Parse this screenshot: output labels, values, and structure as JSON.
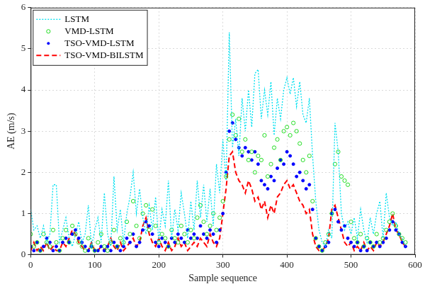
{
  "chart_data": {
    "type": "line",
    "x_label": "Sample sequence",
    "y_label": "AE (m/s)",
    "xlim": [
      0,
      600
    ],
    "xticks": [
      0,
      100,
      200,
      300,
      400,
      500,
      600
    ],
    "ylim": [
      0,
      6
    ],
    "yticks": [
      0,
      1,
      2,
      3,
      4,
      5,
      6
    ],
    "grid": true,
    "legend": "upper left",
    "x": [
      0,
      5,
      10,
      15,
      20,
      25,
      30,
      35,
      40,
      45,
      50,
      55,
      60,
      65,
      70,
      75,
      80,
      85,
      90,
      95,
      100,
      105,
      110,
      115,
      120,
      125,
      130,
      135,
      140,
      145,
      150,
      155,
      160,
      165,
      170,
      175,
      180,
      185,
      190,
      195,
      200,
      205,
      210,
      215,
      220,
      225,
      230,
      235,
      240,
      245,
      250,
      255,
      260,
      265,
      270,
      275,
      280,
      285,
      290,
      295,
      300,
      305,
      310,
      315,
      320,
      325,
      330,
      335,
      340,
      345,
      350,
      355,
      360,
      365,
      370,
      375,
      380,
      385,
      390,
      395,
      400,
      405,
      410,
      415,
      420,
      425,
      430,
      435,
      440,
      445,
      450,
      455,
      460,
      465,
      470,
      475,
      480,
      485,
      490,
      495,
      500,
      505,
      510,
      515,
      520,
      525,
      530,
      535,
      540,
      545,
      550,
      555,
      560,
      565,
      570,
      575,
      580,
      585
    ],
    "series": [
      {
        "name": "LSTM",
        "color": "#00e0f0",
        "line_style": "dotted",
        "marker": "none",
        "values": [
          1.1,
          0.6,
          0.7,
          0.4,
          0.7,
          0.3,
          0.5,
          1.7,
          1.7,
          0.3,
          0.6,
          0.9,
          0.4,
          0.2,
          0.5,
          0.8,
          0.3,
          0.5,
          1.2,
          0.2,
          0.6,
          0.9,
          0.3,
          1.5,
          0.5,
          0.2,
          1.9,
          0.6,
          1.1,
          0.3,
          1.0,
          1.4,
          2.0,
          1.0,
          1.6,
          0.9,
          0.5,
          1.2,
          0.6,
          1.4,
          0.3,
          1.1,
          0.7,
          1.8,
          0.4,
          1.1,
          0.6,
          1.5,
          1.0,
          0.4,
          1.3,
          0.6,
          1.8,
          0.9,
          1.7,
          0.8,
          1.6,
          0.7,
          2.2,
          1.5,
          2.8,
          1.8,
          5.4,
          2.6,
          3.3,
          2.4,
          3.8,
          3.0,
          4.0,
          3.1,
          4.4,
          4.5,
          3.3,
          4.0,
          3.4,
          4.2,
          2.9,
          3.8,
          3.3,
          4.0,
          4.3,
          3.9,
          4.3,
          3.6,
          4.2,
          3.4,
          3.2,
          3.8,
          2.4,
          1.3,
          0.6,
          0.3,
          0.2,
          0.6,
          0.4,
          3.2,
          2.5,
          1.0,
          0.6,
          0.8,
          0.5,
          0.9,
          0.4,
          1.1,
          0.6,
          0.3,
          0.9,
          0.5,
          1.0,
          1.3,
          0.4,
          1.5,
          0.9,
          0.7,
          0.8,
          0.5,
          0.4,
          0.2
        ]
      },
      {
        "name": "VMD-LSTM",
        "color": "#22dd22",
        "line_style": "none",
        "marker": "circle",
        "values": [
          0.5,
          0.2,
          0.3,
          0.1,
          0.5,
          0.3,
          0.2,
          0.6,
          0.3,
          0.1,
          0.4,
          0.6,
          0.3,
          0.7,
          0.5,
          0.3,
          0.2,
          0.1,
          0.4,
          0.2,
          0.1,
          0.3,
          0.5,
          0.2,
          0.1,
          0.3,
          0.6,
          0.2,
          0.4,
          0.3,
          0.8,
          0.5,
          1.3,
          0.7,
          0.4,
          1.0,
          1.2,
          0.6,
          1.1,
          0.7,
          0.3,
          0.5,
          0.4,
          0.2,
          0.6,
          0.4,
          0.3,
          0.7,
          0.5,
          0.3,
          0.6,
          0.4,
          0.9,
          1.2,
          0.8,
          0.5,
          0.7,
          1.0,
          0.6,
          0.9,
          1.3,
          1.9,
          2.8,
          3.4,
          2.9,
          3.3,
          2.5,
          2.8,
          2.3,
          2.5,
          2.0,
          2.4,
          2.3,
          2.9,
          1.9,
          2.2,
          2.6,
          2.8,
          2.3,
          3.0,
          3.1,
          2.9,
          3.2,
          3.0,
          2.7,
          2.3,
          2.0,
          2.4,
          1.3,
          0.4,
          0.2,
          0.1,
          0.3,
          0.5,
          1.0,
          2.2,
          2.5,
          1.9,
          1.8,
          1.7,
          0.8,
          0.4,
          0.3,
          0.5,
          0.2,
          0.4,
          0.3,
          0.2,
          0.5,
          0.3,
          0.4,
          0.6,
          0.8,
          1.0,
          0.7,
          0.5,
          0.4,
          0.3
        ]
      },
      {
        "name": "TSO-VMD-LSTM",
        "color": "#0000ff",
        "line_style": "none",
        "marker": "dot",
        "values": [
          0.2,
          0.1,
          0.3,
          0.1,
          0.2,
          0.4,
          0.3,
          0.1,
          0.2,
          0.1,
          0.3,
          0.4,
          0.3,
          0.5,
          0.6,
          0.4,
          0.3,
          0.2,
          0.1,
          0.2,
          0.1,
          0.1,
          0.2,
          0.1,
          0.2,
          0.1,
          0.3,
          0.2,
          0.1,
          0.2,
          0.4,
          0.3,
          0.5,
          0.2,
          0.3,
          0.6,
          0.8,
          0.7,
          0.5,
          0.3,
          0.2,
          0.4,
          0.3,
          0.2,
          0.4,
          0.3,
          0.5,
          0.4,
          0.3,
          0.6,
          0.4,
          0.5,
          0.4,
          0.7,
          0.5,
          0.4,
          0.6,
          0.5,
          0.3,
          0.6,
          1.0,
          2.0,
          3.0,
          3.2,
          2.8,
          2.6,
          2.4,
          2.6,
          2.5,
          2.3,
          2.5,
          2.2,
          1.8,
          1.7,
          1.6,
          1.9,
          1.8,
          2.1,
          2.3,
          2.2,
          2.5,
          2.4,
          2.2,
          1.9,
          2.0,
          1.8,
          1.6,
          1.7,
          1.1,
          0.4,
          0.2,
          0.1,
          0.2,
          0.3,
          1.0,
          1.1,
          0.8,
          0.6,
          0.7,
          0.4,
          0.3,
          0.2,
          0.3,
          0.1,
          0.2,
          0.1,
          0.3,
          0.2,
          0.3,
          0.2,
          0.3,
          0.4,
          0.6,
          0.8,
          0.6,
          0.5,
          0.3,
          0.2
        ]
      },
      {
        "name": "TSO-VMD-BILSTM",
        "color": "#ff0000",
        "line_style": "dashed",
        "marker": "none",
        "values": [
          0.1,
          0.3,
          0.1,
          0.2,
          0.1,
          0.3,
          0.1,
          0.2,
          0.1,
          0.1,
          0.3,
          0.2,
          0.4,
          0.6,
          0.5,
          0.3,
          0.2,
          0.1,
          0.1,
          0.3,
          0.1,
          0.1,
          0.2,
          0.1,
          0.2,
          0.4,
          0.2,
          0.1,
          0.3,
          0.1,
          0.2,
          0.3,
          0.4,
          0.2,
          0.3,
          0.7,
          0.9,
          0.5,
          0.3,
          0.2,
          0.4,
          0.2,
          0.1,
          0.3,
          0.1,
          0.2,
          0.4,
          0.2,
          0.3,
          0.1,
          0.2,
          0.3,
          0.2,
          0.4,
          0.3,
          0.2,
          0.5,
          0.3,
          0.2,
          0.4,
          1.0,
          1.6,
          2.4,
          2.5,
          2.0,
          1.8,
          1.7,
          1.5,
          1.8,
          1.6,
          1.3,
          1.4,
          1.1,
          1.3,
          0.9,
          1.2,
          1.0,
          1.4,
          1.5,
          1.7,
          1.8,
          1.6,
          1.7,
          1.5,
          1.3,
          1.2,
          1.0,
          1.1,
          0.5,
          0.2,
          0.1,
          0.1,
          0.2,
          0.4,
          1.1,
          1.2,
          0.9,
          0.6,
          0.3,
          0.2,
          0.3,
          0.1,
          0.2,
          0.1,
          0.3,
          0.1,
          0.2,
          0.1,
          0.3,
          0.2,
          0.3,
          0.5,
          0.7,
          1.0,
          0.6,
          0.5,
          0.3,
          0.2
        ]
      }
    ]
  }
}
